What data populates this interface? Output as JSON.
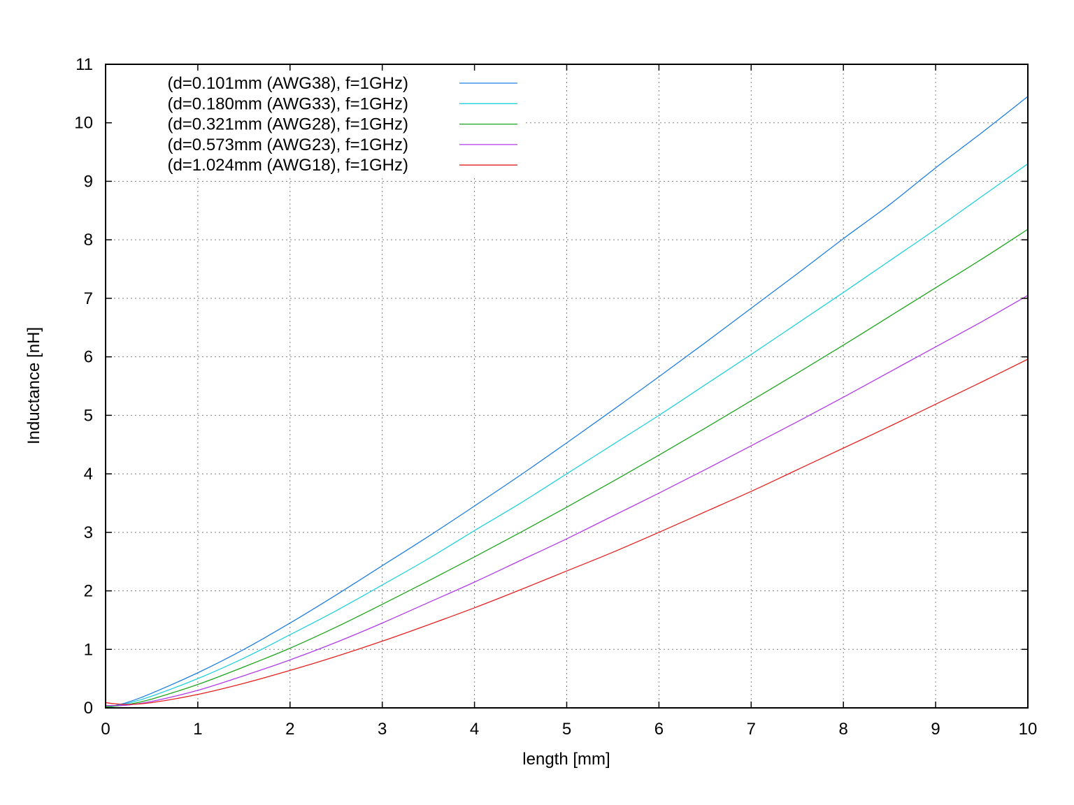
{
  "chart_data": {
    "type": "line",
    "title": "",
    "xlabel": "length [mm]",
    "ylabel": "Inductance [nH]",
    "xlim": [
      0,
      10
    ],
    "ylim": [
      0,
      11
    ],
    "xticks": [
      0,
      1,
      2,
      3,
      4,
      5,
      6,
      7,
      8,
      9,
      10
    ],
    "yticks": [
      0,
      1,
      2,
      3,
      4,
      5,
      6,
      7,
      8,
      9,
      10,
      11
    ],
    "xtick_labels": [
      "0",
      "1",
      "2",
      "3",
      "4",
      "5",
      "6",
      "7",
      "8",
      "9",
      "10"
    ],
    "ytick_labels": [
      "0",
      "1",
      "2",
      "3",
      "4",
      "5",
      "6",
      "7",
      "8",
      "9",
      "10",
      "11"
    ],
    "grid": true,
    "legend_position": "top-left",
    "x": [
      0,
      0.1,
      0.25,
      0.5,
      1,
      1.5,
      2,
      2.5,
      3,
      3.5,
      4,
      4.5,
      5,
      5.5,
      6,
      6.5,
      7,
      7.5,
      8,
      8.5,
      9,
      9.5,
      10
    ],
    "series": [
      {
        "name": "(d=0.101mm (AWG38), f=1GHz)",
        "color": "#1e7fe0",
        "values": [
          0.0,
          0.04,
          0.1,
          0.25,
          0.6,
          1.0,
          1.45,
          1.93,
          2.43,
          2.93,
          3.45,
          3.98,
          4.53,
          5.09,
          5.66,
          6.24,
          6.83,
          7.42,
          8.02,
          8.6,
          9.23,
          9.83,
          10.45
        ]
      },
      {
        "name": "(d=0.180mm (AWG33), f=1GHz)",
        "color": "#22d0dc",
        "values": [
          0.0,
          0.03,
          0.08,
          0.2,
          0.5,
          0.85,
          1.25,
          1.66,
          2.1,
          2.55,
          3.03,
          3.5,
          4.0,
          4.5,
          5.0,
          5.52,
          6.04,
          6.57,
          7.1,
          7.64,
          8.18,
          8.74,
          9.3
        ]
      },
      {
        "name": "(d=0.321mm (AWG28), f=1GHz)",
        "color": "#1ea51e",
        "values": [
          0.02,
          0.03,
          0.06,
          0.15,
          0.4,
          0.7,
          1.02,
          1.38,
          1.77,
          2.17,
          2.58,
          3.0,
          3.43,
          3.87,
          4.32,
          4.78,
          5.25,
          5.72,
          6.2,
          6.69,
          7.18,
          7.67,
          8.18
        ]
      },
      {
        "name": "(d=0.573mm (AWG23), f=1GHz)",
        "color": "#b23ce6",
        "values": [
          0.04,
          0.04,
          0.05,
          0.11,
          0.3,
          0.55,
          0.82,
          1.12,
          1.45,
          1.8,
          2.15,
          2.52,
          2.89,
          3.28,
          3.67,
          4.07,
          4.48,
          4.89,
          5.31,
          5.74,
          6.17,
          6.6,
          7.05
        ]
      },
      {
        "name": "(d=1.024mm (AWG18), f=1GHz)",
        "color": "#e62020",
        "values": [
          0.09,
          0.07,
          0.06,
          0.09,
          0.23,
          0.42,
          0.64,
          0.88,
          1.14,
          1.42,
          1.71,
          2.02,
          2.34,
          2.66,
          3.0,
          3.35,
          3.7,
          4.07,
          4.44,
          4.81,
          5.19,
          5.57,
          5.96
        ]
      }
    ]
  }
}
